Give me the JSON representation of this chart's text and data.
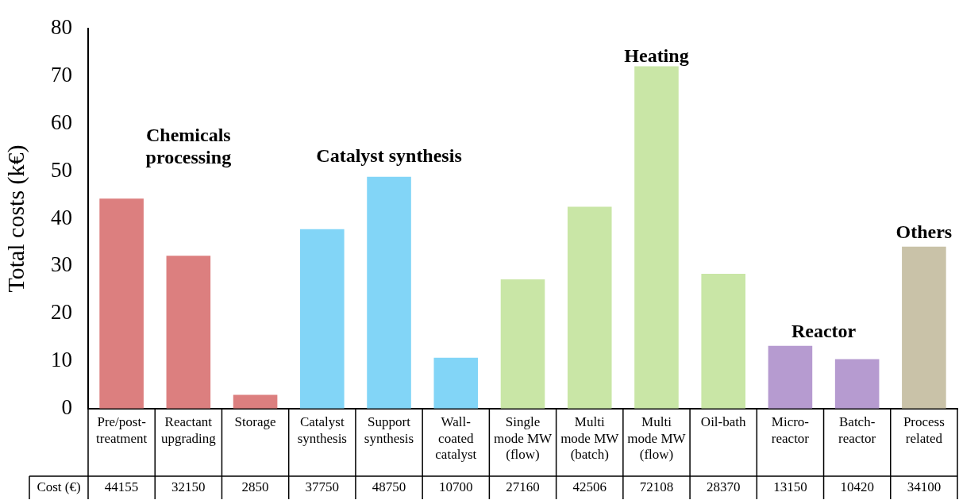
{
  "chart_data": {
    "type": "bar",
    "ylabel": "Total costs (k€)",
    "categories": [
      "Pre/post-treatment",
      "Reactant upgrading",
      "Storage",
      "Catalyst synthesis",
      "Support synthesis",
      "Wall-coated catalyst",
      "Single mode MW (flow)",
      "Multi mode MW (batch)",
      "Multi mode MW (flow)",
      "Oil-bath",
      "Micro-reactor",
      "Batch-reactor",
      "Process related"
    ],
    "values": [
      44.2,
      32.2,
      2.9,
      37.8,
      48.8,
      10.7,
      27.2,
      42.5,
      72.1,
      28.4,
      13.2,
      10.4,
      34.1
    ],
    "colors": [
      "#dc7f7f",
      "#dc7f7f",
      "#dc7f7f",
      "#82d5f7",
      "#82d5f7",
      "#82d5f7",
      "#c9e6a6",
      "#c9e6a6",
      "#c9e6a6",
      "#c9e6a6",
      "#b69bd0",
      "#b69bd0",
      "#c9c2a8"
    ],
    "ylim": [
      0,
      80
    ],
    "yticks": [
      0,
      10,
      20,
      30,
      40,
      50,
      60,
      70,
      80
    ],
    "grid": false,
    "legend": false,
    "annotations": [
      "Chemicals processing",
      "Catalyst synthesis",
      "Heating",
      "Reactor",
      "Others",
      "Cost (€)",
      "44155",
      "32150",
      "2850",
      "37750",
      "48750",
      "10700",
      "27160",
      "42506",
      "72108",
      "28370",
      "13150",
      "10420",
      "34100"
    ]
  }
}
